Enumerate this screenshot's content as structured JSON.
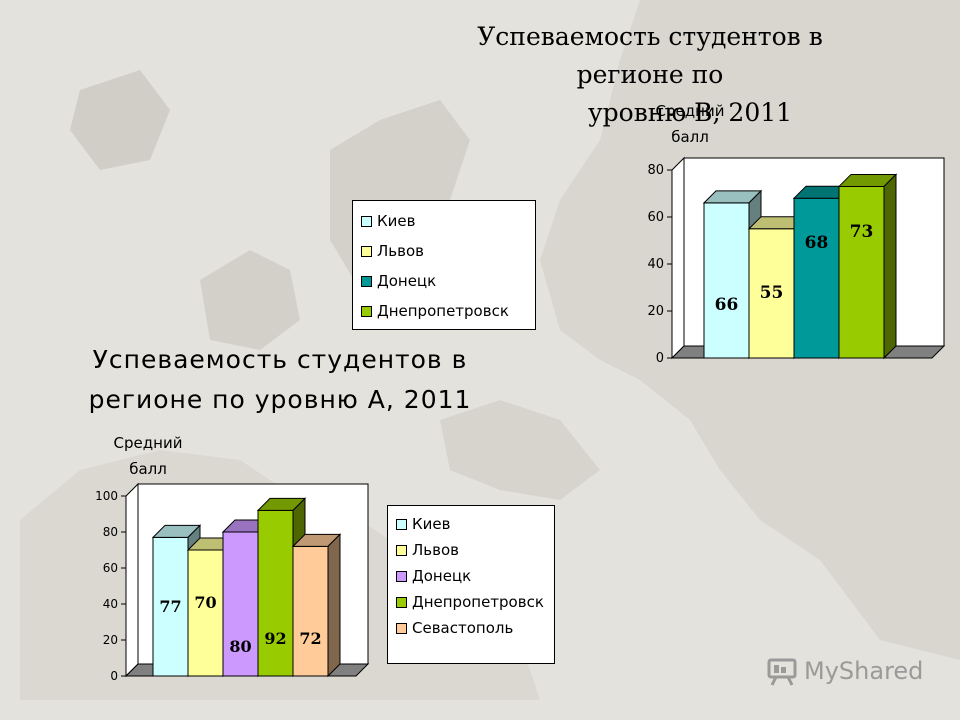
{
  "chart_data": [
    {
      "type": "bar",
      "title": "Успеваемость студентов в регионе по уровню В, 2011",
      "ylabel": "Средний балл",
      "ylim": [
        0,
        80
      ],
      "yticks": [
        "0",
        "20",
        "40",
        "60",
        "80"
      ],
      "categories": [
        "Киев",
        "Львов",
        "Донецк",
        "Днепропетровск"
      ],
      "values": [
        66,
        55,
        68,
        73
      ],
      "colors": [
        "#ccffff",
        "#ffff99",
        "#009999",
        "#99cc00"
      ],
      "legend": [
        "Киев",
        "Львов",
        "Донецк",
        "Днепропетровск"
      ],
      "legend_position": "left"
    },
    {
      "type": "bar",
      "title": "Успеваемость студентов в регионе по уровню А, 2011",
      "ylabel": "Средний балл",
      "ylim": [
        0,
        100
      ],
      "yticks": [
        "0",
        "20",
        "40",
        "60",
        "80",
        "100"
      ],
      "categories": [
        "Киев",
        "Львов",
        "Донецк",
        "Днепропетровск",
        "Севастополь"
      ],
      "values": [
        77,
        70,
        80,
        92,
        72
      ],
      "colors": [
        "#ccffff",
        "#ffff99",
        "#cc99ff",
        "#99cc00",
        "#ffcc99"
      ],
      "legend": [
        "Киев",
        "Львов",
        "Донецк",
        "Днепропетровск",
        "Севастополь"
      ],
      "legend_position": "right"
    }
  ],
  "page": {
    "title_b_line1": "Успеваемость студентов в регионе по",
    "title_b_line2": "уровню В, 2011",
    "ylabel_b_line1": "Средний",
    "ylabel_b_line2": "балл",
    "title_a_line1": "Успеваемость студентов в",
    "title_a_line2": "регионе по уровню А, 2011",
    "ylabel_a_line1": "Средний",
    "ylabel_a_line2": "балл",
    "logo_text": "MyShared"
  }
}
